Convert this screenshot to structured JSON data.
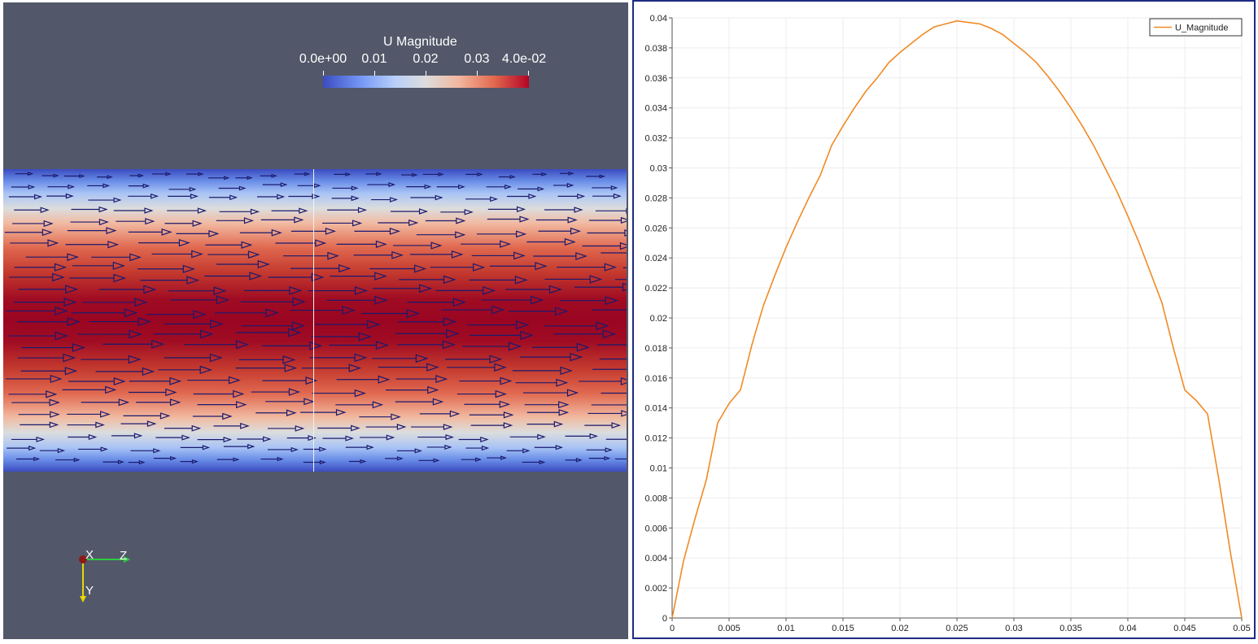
{
  "render_view": {
    "legend": {
      "title": "U Magnitude",
      "tick_labels": [
        "0.0e+00",
        "0.01",
        "0.02",
        "0.03",
        "4.0e-02"
      ],
      "tick_values": [
        0,
        0.01,
        0.02,
        0.03,
        0.04
      ]
    },
    "orientation_axes": {
      "x_label": "X",
      "y_label": "Y",
      "z_label": "Z"
    },
    "colors": {
      "background": "#525869",
      "arrow": "#1a1a6e",
      "y_axis": "#e8d800",
      "z_axis": "#2ecc40",
      "x_axis": "#8b1a1a"
    }
  },
  "chart_data": {
    "type": "line",
    "title": "",
    "xlabel": "",
    "ylabel": "",
    "xlim": [
      0,
      0.05
    ],
    "ylim": [
      0,
      0.04
    ],
    "x_ticks": [
      "0",
      "0.005",
      "0.01",
      "0.015",
      "0.02",
      "0.025",
      "0.03",
      "0.035",
      "0.04",
      "0.045",
      "0.05"
    ],
    "y_ticks": [
      "0",
      "0.002",
      "0.004",
      "0.006",
      "0.008",
      "0.01",
      "0.012",
      "0.014",
      "0.016",
      "0.018",
      "0.02",
      "0.022",
      "0.024",
      "0.026",
      "0.028",
      "0.03",
      "0.032",
      "0.034",
      "0.036",
      "0.038",
      "0.04"
    ],
    "grid": true,
    "legend_position": "top-right",
    "series": [
      {
        "name": "U_Magnitude",
        "color": "#f08a24",
        "x": [
          0,
          0.001,
          0.002,
          0.003,
          0.004,
          0.005,
          0.006,
          0.007,
          0.008,
          0.009,
          0.01,
          0.011,
          0.012,
          0.013,
          0.014,
          0.015,
          0.016,
          0.017,
          0.018,
          0.019,
          0.02,
          0.021,
          0.022,
          0.023,
          0.024,
          0.025,
          0.026,
          0.027,
          0.028,
          0.029,
          0.03,
          0.031,
          0.032,
          0.033,
          0.034,
          0.035,
          0.036,
          0.037,
          0.038,
          0.039,
          0.04,
          0.041,
          0.042,
          0.043,
          0.044,
          0.045,
          0.046,
          0.047,
          0.048,
          0.049,
          0.05
        ],
        "values": [
          0,
          0.0038,
          0.0066,
          0.0092,
          0.013,
          0.0143,
          0.0152,
          0.0182,
          0.0208,
          0.0228,
          0.0247,
          0.0264,
          0.028,
          0.0295,
          0.0315,
          0.0328,
          0.034,
          0.0351,
          0.036,
          0.037,
          0.0377,
          0.0383,
          0.0389,
          0.0394,
          0.0396,
          0.0398,
          0.0397,
          0.0396,
          0.0393,
          0.0389,
          0.0383,
          0.0377,
          0.037,
          0.0361,
          0.0351,
          0.034,
          0.0328,
          0.0315,
          0.03,
          0.0285,
          0.0268,
          0.025,
          0.023,
          0.021,
          0.018,
          0.0152,
          0.0145,
          0.0136,
          0.0092,
          0.0044,
          0
        ]
      }
    ]
  }
}
